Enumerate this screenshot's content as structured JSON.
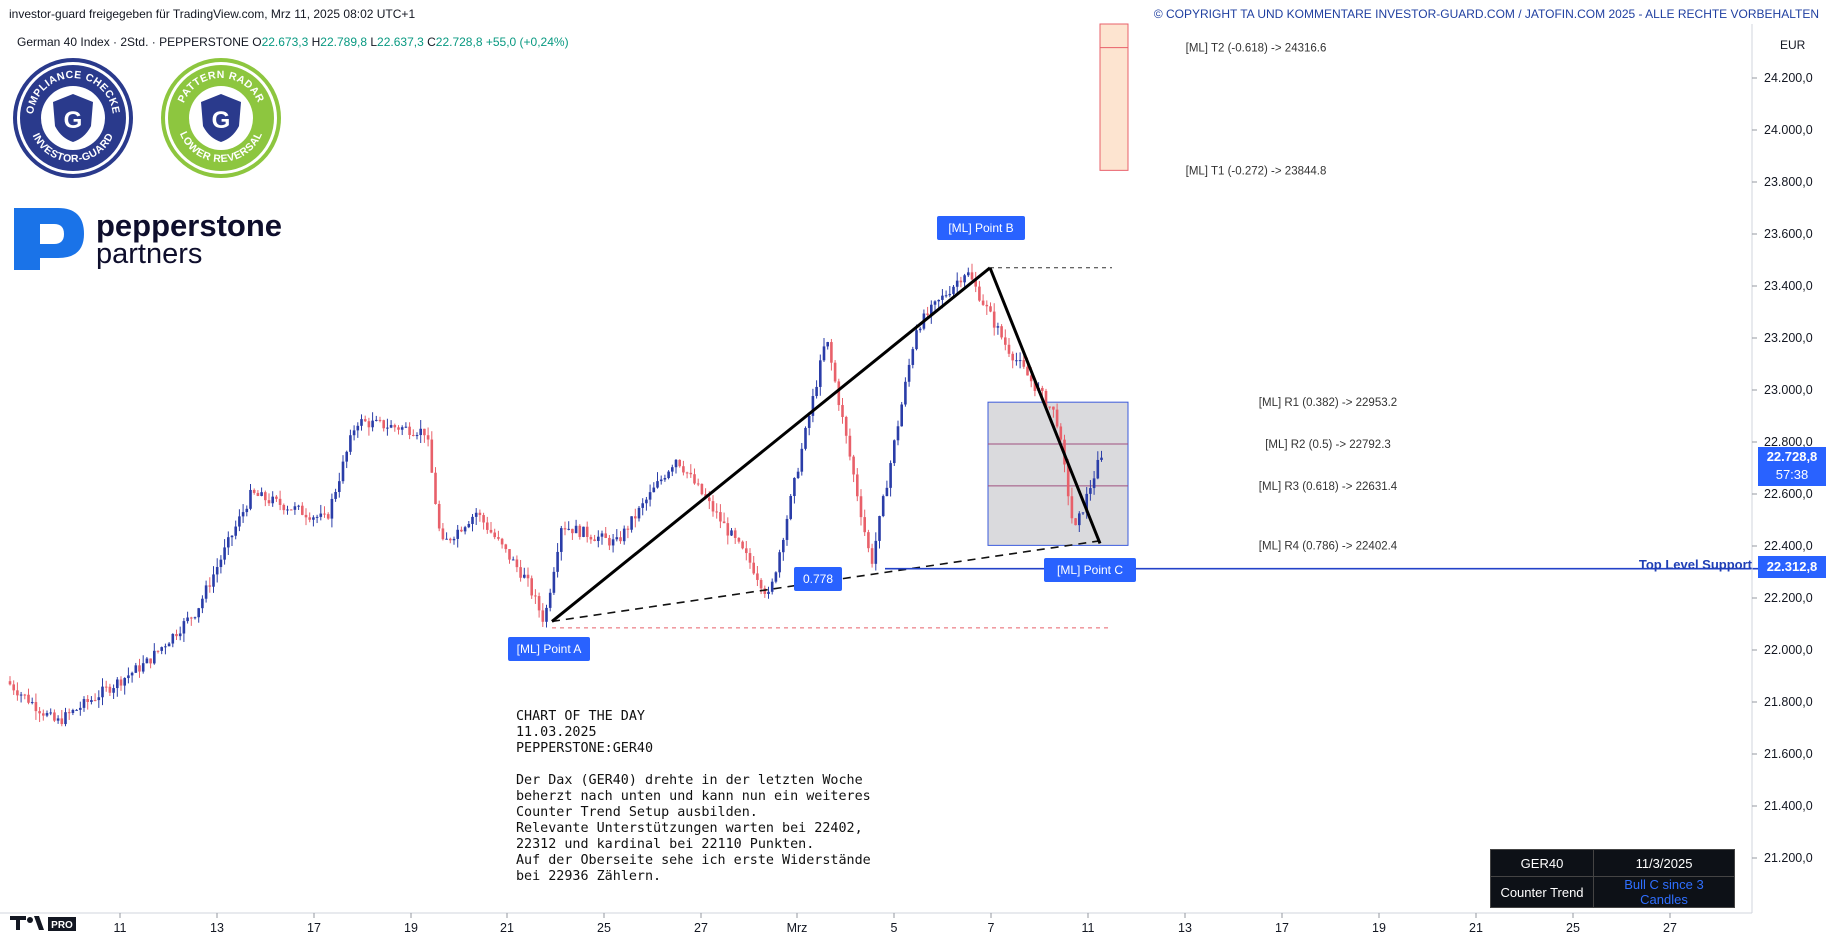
{
  "header": {
    "shared_by": "investor-guard freigegeben für TradingView.com, Mrz 11, 2025 08:02 UTC+1",
    "copyright": "© COPYRIGHT TA UND KOMMENTARE INVESTOR-GUARD.COM / JATOFIN.COM 2025 - ALLE RECHTE VORBEHALTEN"
  },
  "symbol_line": {
    "name": "German 40 Index · 2Std. · PEPPERSTONE",
    "o_label": "O",
    "o": "22.673,3",
    "h_label": "H",
    "h": "22.789,8",
    "l_label": "L",
    "l": "22.637,3",
    "c_label": "C",
    "c": "22.728,8",
    "change": "+55,0 (+0,24%)"
  },
  "badges": {
    "compliance": {
      "top": "COMPLIANCE CHECKED",
      "bottom": "INVESTOR-GUARD",
      "color": "#2a3a8c"
    },
    "pattern": {
      "top": "PATTERN RADAR",
      "bottom": "LOWER REVERSAL",
      "color": "#8dc63f"
    }
  },
  "logo": {
    "word1": "pepperstone",
    "word2": "partners",
    "color": "#1a73e8"
  },
  "axis": {
    "currency": "EUR",
    "tv_pro": "PRO"
  },
  "current_price": {
    "price": "22.728,8",
    "countdown": "57:38"
  },
  "support": {
    "label": "Top Level Support",
    "price": "22.312,8"
  },
  "chart_data": {
    "type": "candlestick",
    "symbol": "PEPPERSTONE:GER40",
    "interval": "2Std.",
    "ylim": [
      21050,
      24400
    ],
    "y_ticks": [
      "21.200,0",
      "21.400,0",
      "21.600,0",
      "21.800,0",
      "22.000,0",
      "22.200,0",
      "22.400,0",
      "22.600,0",
      "22.800,0",
      "23.000,0",
      "23.200,0",
      "23.400,0",
      "23.600,0",
      "23.800,0",
      "24.000,0",
      "24.200,0"
    ],
    "x_ticks": [
      "11",
      "13",
      "17",
      "19",
      "21",
      "25",
      "27",
      "Mrz",
      "5",
      "7",
      "11",
      "13",
      "17",
      "19",
      "21",
      "25",
      "27"
    ],
    "price_path": [
      [
        "2025-02-10",
        21880
      ],
      [
        "2025-02-11",
        21720
      ],
      [
        "2025-02-12",
        21950
      ],
      [
        "2025-02-13",
        22150
      ],
      [
        "2025-02-14",
        22600
      ],
      [
        "2025-02-17",
        22500
      ],
      [
        "2025-02-18",
        22880
      ],
      [
        "2025-02-19",
        22840
      ],
      [
        "2025-02-20",
        22400
      ],
      [
        "2025-02-21",
        22530
      ],
      [
        "2025-02-24",
        22270
      ],
      [
        "2025-02-24",
        22110
      ],
      [
        "2025-02-25",
        22480
      ],
      [
        "2025-02-26",
        22410
      ],
      [
        "2025-02-27",
        22740
      ],
      [
        "2025-02-28",
        22330
      ],
      [
        "2025-02-28",
        22200
      ],
      [
        "2025-03-03",
        23200
      ],
      [
        "2025-03-04",
        22330
      ],
      [
        "2025-03-05",
        23240
      ],
      [
        "2025-03-06",
        23460
      ],
      [
        "2025-03-07",
        23170
      ],
      [
        "2025-03-10",
        22900
      ],
      [
        "2025-03-10",
        22450
      ],
      [
        "2025-03-11",
        22728.8
      ]
    ],
    "drawings": {
      "point_a": {
        "label": "[ML] Point A",
        "price": 22110
      },
      "point_b": {
        "label": "[ML] Point  B",
        "price": 23470
      },
      "point_c": {
        "label": "[ML] Point  C",
        "price": 22312.8
      },
      "ratio_label": "0.778",
      "levels": [
        {
          "label": "[ML] T2 (-0.618) -> 24316.6",
          "price": 24316.6
        },
        {
          "label": "[ML] T1 (-0.272) -> 23844.8",
          "price": 23844.8
        },
        {
          "label": "[ML] R1 (0.382) -> 22953.2",
          "price": 22953.2
        },
        {
          "label": "[ML] R2 (0.5) -> 22792.3",
          "price": 22792.3
        },
        {
          "label": "[ML] R3 (0.618) -> 22631.4",
          "price": 22631.4
        },
        {
          "label": "[ML] R4 (0.786) -> 22402.4",
          "price": 22402.4
        }
      ]
    }
  },
  "commentary": {
    "lines": [
      "CHART OF THE DAY",
      "11.03.2025",
      "PEPPERSTONE:GER40",
      "",
      "Der Dax (GER40) drehte in der letzten Woche",
      "beherzt nach unten und kann nun ein weiteres",
      "Counter Trend Setup ausbilden.",
      "Relevante Unterstützungen warten bei 22402,",
      "22312 und kardinal bei 22110 Punkten.",
      "Auf der Oberseite sehe ich erste Widerstände",
      "bei 22936 Zählern."
    ]
  },
  "status_table": {
    "symbol": "GER40",
    "date": "11/3/2025",
    "trend_label": "Counter Trend",
    "trend_value": "Bull C since 3 Candles"
  }
}
